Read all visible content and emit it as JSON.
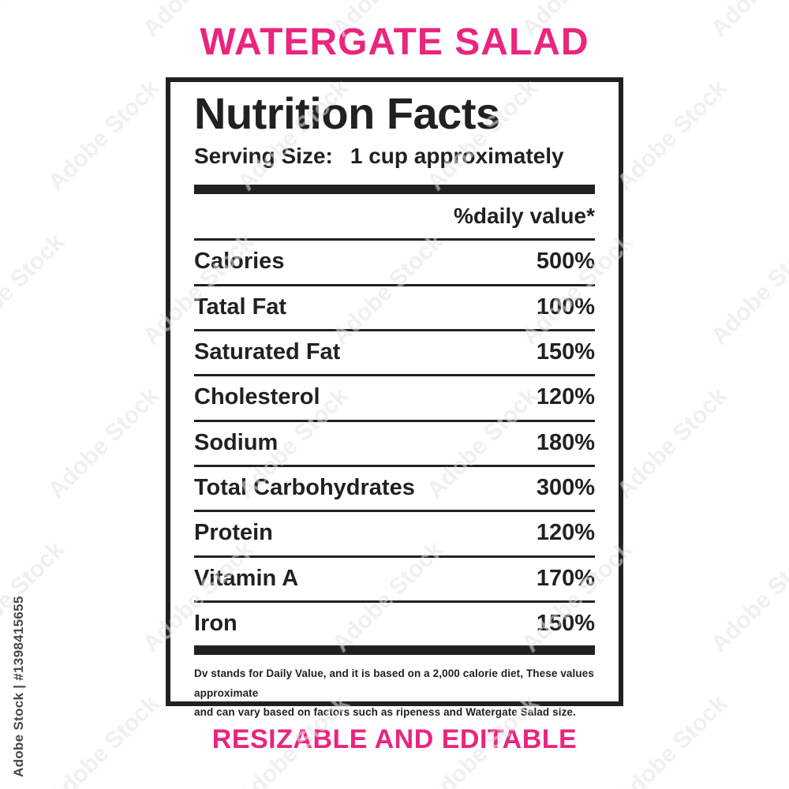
{
  "page": {
    "title": "WATERGATE SALAD",
    "footer": "RESIZABLE AND EDITABLE",
    "accent_color": "#E9257E",
    "text_color": "#232021"
  },
  "label": {
    "heading": "Nutrition Facts",
    "serving_label": "Serving Size:",
    "serving_value": "1 cup approximately",
    "column_header": "%daily value*",
    "rows": [
      {
        "name": "Calories",
        "value": "500%"
      },
      {
        "name": "Tatal Fat",
        "value": "100%"
      },
      {
        "name": "Saturated Fat",
        "value": "150%"
      },
      {
        "name": "Cholesterol",
        "value": "120%"
      },
      {
        "name": "Sodium",
        "value": "180%"
      },
      {
        "name": "Total Carbohydrates",
        "value": "300%"
      },
      {
        "name": "Protein",
        "value": "120%"
      },
      {
        "name": "Vitamin A",
        "value": "170%"
      },
      {
        "name": "Iron",
        "value": "150%"
      }
    ],
    "footnote_lines": [
      "Dv stands for Daily Value, and it is based on a 2,000 calorie diet, These values approximate",
      "and can vary based on factors such as ripeness and Watergate Salad size."
    ]
  },
  "watermark": {
    "diagonal_text": "Adobe Stock",
    "credit_text": "Adobe Stock | #1398415655"
  }
}
